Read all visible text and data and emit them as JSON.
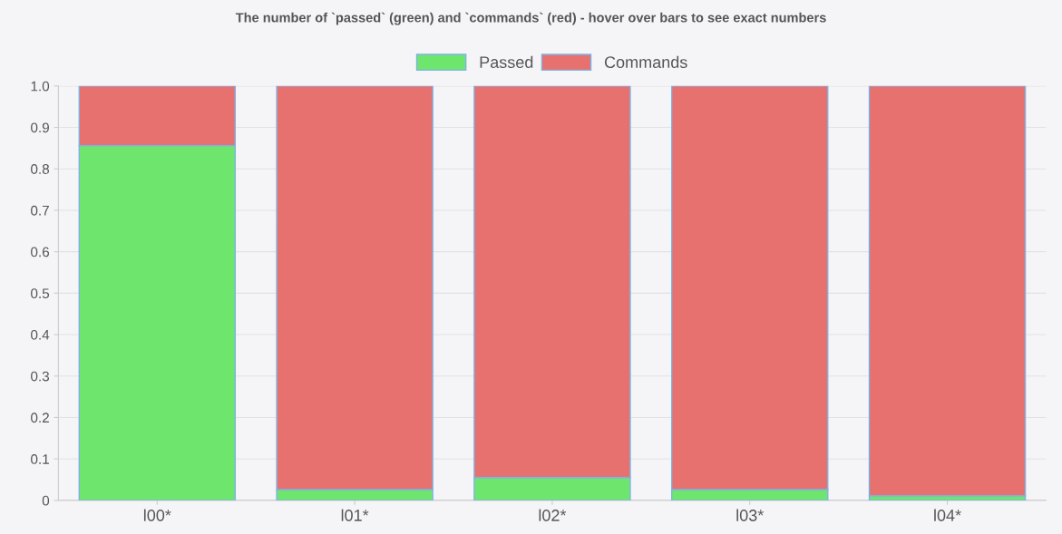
{
  "chart_data": {
    "type": "bar",
    "title": "The number of `passed` (green) and `commands` (red) - hover over bars to see exact numbers",
    "categories": [
      "l00*",
      "l01*",
      "l02*",
      "l03*",
      "l04*"
    ],
    "series": [
      {
        "name": "Passed",
        "color": "#6ee66e",
        "values": [
          0.856,
          0.026,
          0.055,
          0.026,
          0.011
        ]
      },
      {
        "name": "Commands",
        "color": "#e7716e",
        "values": [
          0.144,
          0.974,
          0.945,
          0.974,
          0.989
        ]
      }
    ],
    "stacked": true,
    "ylim": [
      0,
      1.0
    ],
    "yticks": [
      0,
      0.1,
      0.2,
      0.3,
      0.4,
      0.5,
      0.6,
      0.7,
      0.8,
      0.9,
      {
        "value": 1.0,
        "label": "1.0"
      }
    ],
    "grid": "y",
    "legend": "top"
  }
}
